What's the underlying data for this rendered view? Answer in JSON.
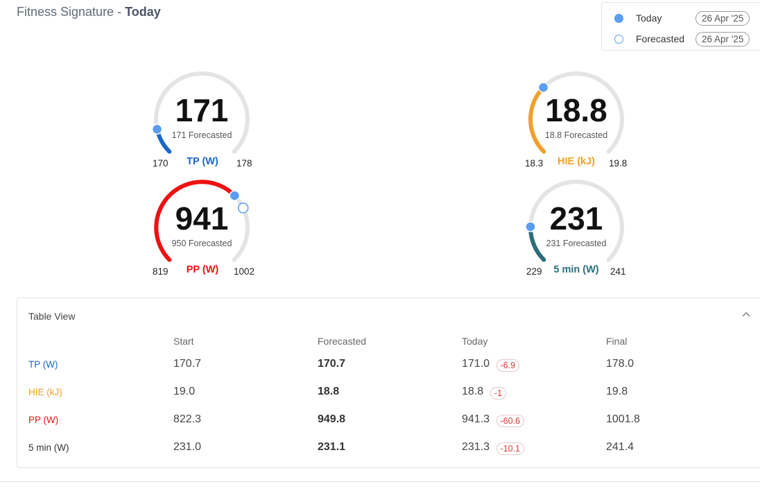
{
  "header": {
    "title_prefix": "Fitness Signature - ",
    "title_bold": "Today"
  },
  "legend": {
    "today": {
      "label": "Today",
      "date": "26 Apr '25"
    },
    "forecasted": {
      "label": "Forecasted",
      "date": "26 Apr '25"
    }
  },
  "gauges": {
    "tp": {
      "value": "171",
      "sub": "171 Forecasted",
      "min": "170",
      "max": "178",
      "name": "TP (W)",
      "color": "#1b66c9",
      "fill": 0.12
    },
    "hie": {
      "value": "18.8",
      "sub": "18.8 Forecasted",
      "min": "18.3",
      "max": "19.8",
      "name": "HIE (kJ)",
      "color": "#f0a12b",
      "fill": 0.33
    },
    "pp": {
      "value": "941",
      "sub": "950 Forecasted",
      "min": "819",
      "max": "1002",
      "name": "PP (W)",
      "color": "#ee1111",
      "fill": 0.67
    },
    "m5": {
      "value": "231",
      "sub": "231 Forecasted",
      "min": "229",
      "max": "241",
      "name": "5 min (W)",
      "color": "#2b6d7a",
      "fill": 0.17
    }
  },
  "table": {
    "title": "Table View",
    "headers": [
      "Start",
      "Forecasted",
      "Today",
      "Final"
    ],
    "rows": [
      {
        "label": "TP (W)",
        "color": "#1b66c9",
        "start": "170.7",
        "forecasted": "170.7",
        "today": "171.0",
        "delta": "-6.9",
        "final": "178.0"
      },
      {
        "label": "HIE (kJ)",
        "color": "#f0a12b",
        "start": "19.0",
        "forecasted": "18.8",
        "today": "18.8",
        "delta": "-1",
        "final": "19.8"
      },
      {
        "label": "PP (W)",
        "color": "#ee1111",
        "start": "822.3",
        "forecasted": "949.8",
        "today": "941.3",
        "delta": "-60.6",
        "final": "1001.8"
      },
      {
        "label": "5 min (W)",
        "color": "#333333",
        "start": "231.0",
        "forecasted": "231.1",
        "today": "231.3",
        "delta": "-10.1",
        "final": "241.4"
      }
    ]
  }
}
